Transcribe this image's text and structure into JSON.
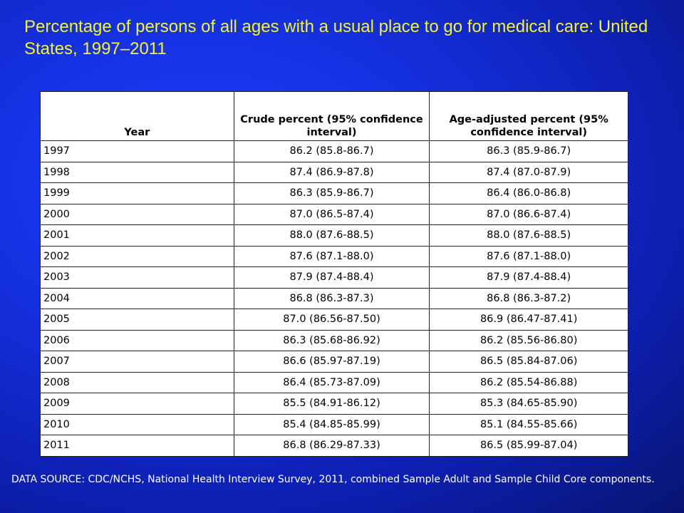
{
  "title": "Percentage of persons of all ages with a usual place to go for medical care: United States, 1997–2011",
  "table": {
    "headers": {
      "year": "Year",
      "crude": "Crude percent (95% confidence interval)",
      "age_adjusted": "Age-adjusted percent (95% confidence interval)"
    },
    "rows": [
      {
        "year": "1997",
        "crude": "86.2 (85.8-86.7)",
        "age_adjusted": "86.3 (85.9-86.7)"
      },
      {
        "year": "1998",
        "crude": "87.4 (86.9-87.8)",
        "age_adjusted": "87.4 (87.0-87.9)"
      },
      {
        "year": "1999",
        "crude": "86.3 (85.9-86.7)",
        "age_adjusted": "86.4 (86.0-86.8)"
      },
      {
        "year": "2000",
        "crude": "87.0 (86.5-87.4)",
        "age_adjusted": "87.0 (86.6-87.4)"
      },
      {
        "year": "2001",
        "crude": "88.0 (87.6-88.5)",
        "age_adjusted": "88.0 (87.6-88.5)"
      },
      {
        "year": "2002",
        "crude": "87.6 (87.1-88.0)",
        "age_adjusted": "87.6 (87.1-88.0)"
      },
      {
        "year": "2003",
        "crude": "87.9 (87.4-88.4)",
        "age_adjusted": "87.9 (87.4-88.4)"
      },
      {
        "year": "2004",
        "crude": "86.8 (86.3-87.3)",
        "age_adjusted": "86.8 (86.3-87.2)"
      },
      {
        "year": "2005",
        "crude": "87.0 (86.56-87.50)",
        "age_adjusted": "86.9 (86.47-87.41)"
      },
      {
        "year": "2006",
        "crude": "86.3 (85.68-86.92)",
        "age_adjusted": "86.2 (85.56-86.80)"
      },
      {
        "year": "2007",
        "crude": "86.6 (85.97-87.19)",
        "age_adjusted": "86.5 (85.84-87.06)"
      },
      {
        "year": "2008",
        "crude": "86.4 (85.73-87.09)",
        "age_adjusted": "86.2 (85.54-86.88)"
      },
      {
        "year": "2009",
        "crude": "85.5 (84.91-86.12)",
        "age_adjusted": "85.3 (84.65-85.90)"
      },
      {
        "year": "2010",
        "crude": "85.4 (84.85-85.99)",
        "age_adjusted": "85.1 (84.55-85.66)"
      },
      {
        "year": "2011",
        "crude": "86.8 (86.29-87.33)",
        "age_adjusted": "86.5 (85.99-87.04)"
      }
    ]
  },
  "source": "DATA SOURCE: CDC/NCHS, National Health Interview Survey, 2011, combined Sample Adult and Sample Child Core components.",
  "colors": {
    "background": "#1530e0",
    "title": "#f5f52a",
    "source_text": "#ffffff",
    "table_bg": "#ffffff"
  }
}
